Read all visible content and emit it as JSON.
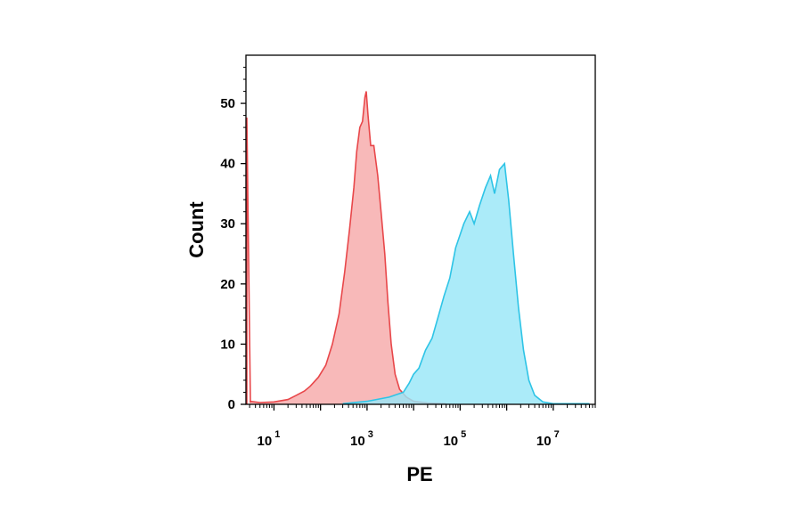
{
  "chart_data": {
    "type": "area",
    "xlabel": "PE",
    "ylabel": "Count",
    "x_scale": "log",
    "xlim": [
      2.5,
      80000000
    ],
    "ylim": [
      0,
      58
    ],
    "grid": false,
    "legend": "none",
    "y_ticks": [
      0,
      10,
      20,
      30,
      40,
      50
    ],
    "x_ticks": [
      {
        "base": "10",
        "exp": "1",
        "value": 10
      },
      {
        "base": "10",
        "exp": "3",
        "value": 1000
      },
      {
        "base": "10",
        "exp": "5",
        "value": 100000
      },
      {
        "base": "10",
        "exp": "7",
        "value": 10000000
      }
    ],
    "series": [
      {
        "color": "#e8474a",
        "fill": "#f7a9aa",
        "points": [
          [
            3.0,
            0.5
          ],
          [
            5,
            0.3
          ],
          [
            10,
            0.4
          ],
          [
            20,
            0.8
          ],
          [
            30,
            1.5
          ],
          [
            45,
            2.2
          ],
          [
            60,
            3.0
          ],
          [
            90,
            4.5
          ],
          [
            130,
            6.5
          ],
          [
            180,
            10
          ],
          [
            250,
            15
          ],
          [
            330,
            22
          ],
          [
            420,
            29
          ],
          [
            520,
            36
          ],
          [
            600,
            42
          ],
          [
            700,
            46
          ],
          [
            800,
            47
          ],
          [
            900,
            51
          ],
          [
            960,
            52
          ],
          [
            1050,
            48
          ],
          [
            1200,
            43
          ],
          [
            1400,
            43
          ],
          [
            1700,
            38
          ],
          [
            2000,
            32
          ],
          [
            2400,
            25
          ],
          [
            2800,
            17
          ],
          [
            3300,
            10
          ],
          [
            4000,
            5
          ],
          [
            5000,
            2.5
          ],
          [
            7000,
            1.2
          ],
          [
            10000,
            0.5
          ],
          [
            20000,
            0.2
          ],
          [
            50000,
            0.1
          ]
        ]
      },
      {
        "color": "#2ec4e6",
        "fill": "#99e6f8",
        "points": [
          [
            300,
            0.1
          ],
          [
            1000,
            0.5
          ],
          [
            3000,
            1.2
          ],
          [
            6000,
            2.0
          ],
          [
            8000,
            3.5
          ],
          [
            10000,
            5
          ],
          [
            13000,
            6
          ],
          [
            18000,
            9
          ],
          [
            25000,
            11
          ],
          [
            35000,
            15
          ],
          [
            45000,
            18
          ],
          [
            60000,
            21
          ],
          [
            80000,
            26
          ],
          [
            120000,
            30
          ],
          [
            160000,
            32
          ],
          [
            200000,
            30
          ],
          [
            260000,
            33
          ],
          [
            350000,
            36
          ],
          [
            450000,
            38
          ],
          [
            550000,
            35
          ],
          [
            700000,
            39
          ],
          [
            900000,
            40
          ],
          [
            1100000,
            34
          ],
          [
            1400000,
            25
          ],
          [
            1800000,
            16
          ],
          [
            2300000,
            9
          ],
          [
            3000000,
            4
          ],
          [
            4000000,
            1.5
          ],
          [
            6000000,
            0.4
          ],
          [
            10000000,
            0.1
          ],
          [
            60000000,
            0.1
          ]
        ]
      }
    ]
  }
}
